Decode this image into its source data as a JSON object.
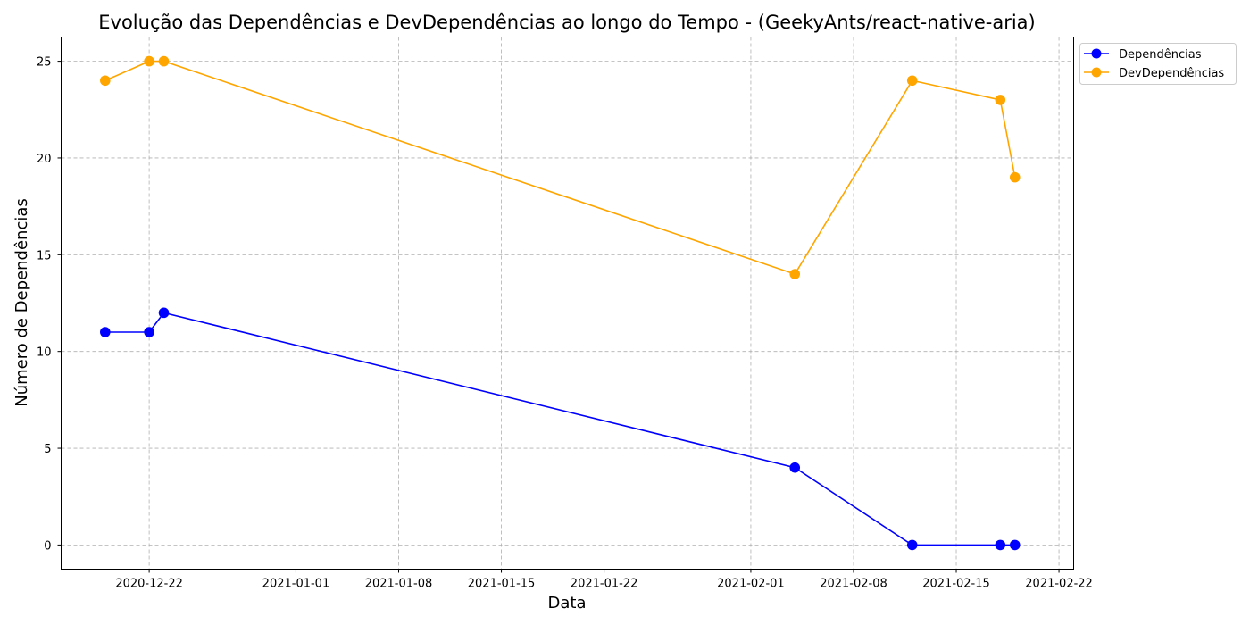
{
  "chart_data": {
    "type": "line",
    "title": "Evolução das Dependências e DevDependências ao longo do Tempo - (GeekyAnts/react-native-aria)",
    "xlabel": "Data",
    "ylabel": "Número de Dependências",
    "x_tick_labels": [
      "2020-12-22",
      "2021-01-01",
      "2021-01-08",
      "2021-01-15",
      "2021-01-22",
      "2021-02-01",
      "2021-02-08",
      "2021-02-15",
      "2021-02-22"
    ],
    "y_tick_labels": [
      "0",
      "5",
      "10",
      "15",
      "20",
      "25"
    ],
    "ylim": [
      -1.25,
      26.25
    ],
    "xlim": [
      "2020-12-16T00:00",
      "2021-02-23T00:00"
    ],
    "grid": true,
    "legend_position": "outside-top-right",
    "x": [
      "2020-12-19",
      "2020-12-22",
      "2020-12-23",
      "2021-02-04",
      "2021-02-12",
      "2021-02-18",
      "2021-02-19"
    ],
    "series": [
      {
        "name": "Dependências",
        "color": "#0000ff",
        "values": [
          11,
          11,
          12,
          4,
          0,
          0,
          0
        ]
      },
      {
        "name": "DevDependências",
        "color": "#ffa500",
        "values": [
          24,
          25,
          25,
          14,
          24,
          23,
          19
        ]
      }
    ]
  }
}
